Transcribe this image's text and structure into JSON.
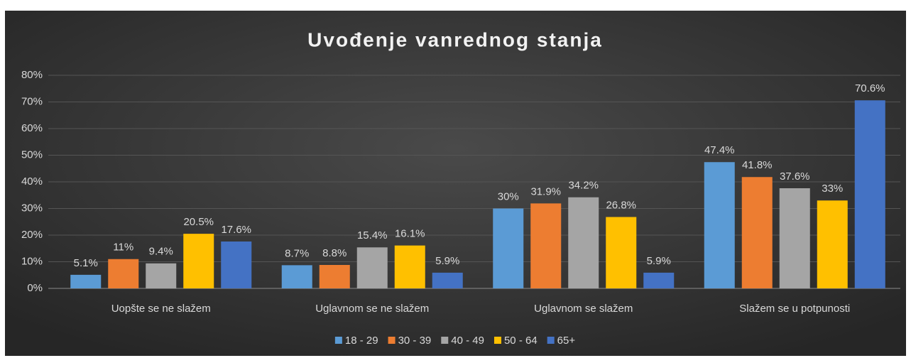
{
  "chart_data": {
    "type": "bar",
    "title": "Uvođenje vanrednog stanja",
    "categories": [
      "Uopšte se ne slažem",
      "Uglavnom se ne slažem",
      "Uglavnom se slažem",
      "Slažem se u potpunosti"
    ],
    "series": [
      {
        "name": "18 - 29",
        "color": "#5b9bd5",
        "values": [
          5.1,
          8.7,
          30,
          47.4
        ],
        "value_labels": [
          "5.1%",
          "8.7%",
          "30%",
          "47.4%"
        ]
      },
      {
        "name": "30 - 39",
        "color": "#ed7d31",
        "values": [
          11,
          8.8,
          31.9,
          41.8
        ],
        "value_labels": [
          "11%",
          "8.8%",
          "31.9%",
          "41.8%"
        ]
      },
      {
        "name": "40 - 49",
        "color": "#a5a5a5",
        "values": [
          9.4,
          15.4,
          34.2,
          37.6
        ],
        "value_labels": [
          "9.4%",
          "15.4%",
          "34.2%",
          "37.6%"
        ]
      },
      {
        "name": "50 - 64",
        "color": "#ffc000",
        "values": [
          20.5,
          16.1,
          26.8,
          33
        ],
        "value_labels": [
          "20.5%",
          "16.1%",
          "26.8%",
          "33%"
        ]
      },
      {
        "name": "65+",
        "color": "#4472c4",
        "values": [
          17.6,
          5.9,
          5.9,
          70.6
        ],
        "value_labels": [
          "17.6%",
          "5.9%",
          "5.9%",
          "70.6%"
        ]
      }
    ],
    "ylim": [
      0,
      80
    ],
    "yticks": [
      {
        "value": 0,
        "label": "0%"
      },
      {
        "value": 10,
        "label": "10%"
      },
      {
        "value": 20,
        "label": "20%"
      },
      {
        "value": 30,
        "label": "30%"
      },
      {
        "value": 40,
        "label": "40%"
      },
      {
        "value": 50,
        "label": "50%"
      },
      {
        "value": 60,
        "label": "60%"
      },
      {
        "value": 70,
        "label": "70%"
      },
      {
        "value": 80,
        "label": "80%"
      }
    ],
    "grid": true,
    "legend": "bottom"
  }
}
